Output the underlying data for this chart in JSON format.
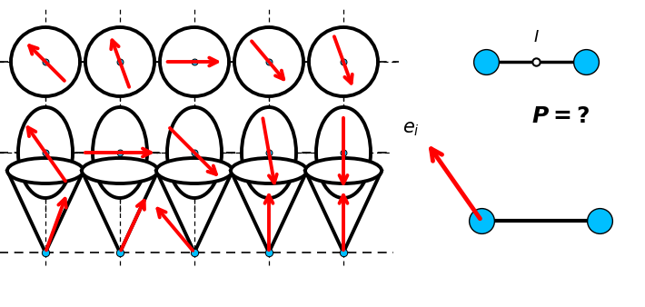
{
  "cyan_color": "#00BFFF",
  "red_color": "#FF0000",
  "black_color": "#000000",
  "bg_color": "#FFFFFF",
  "row1_angles_deg": [
    135,
    110,
    0,
    -50,
    -70
  ],
  "row2_angles_deg": [
    125,
    0,
    -45,
    -80,
    -90
  ],
  "row3_arrow_angles_deg": [
    70,
    65,
    130,
    90,
    90
  ],
  "row3_arrow_tilt_x": [
    0.25,
    0.18,
    -0.55,
    0.0,
    0.0
  ]
}
